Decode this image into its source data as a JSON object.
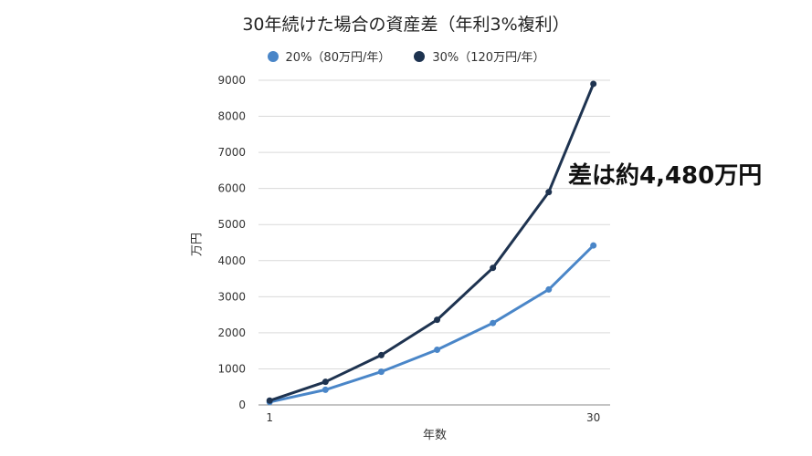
{
  "chart_data": {
    "type": "line",
    "title": "30年続けた場合の資産差（年利3%複利）",
    "xlabel": "年数",
    "ylabel": "万円",
    "ylim": [
      0,
      9000
    ],
    "yticks": [
      0,
      1000,
      2000,
      3000,
      4000,
      5000,
      6000,
      7000,
      8000,
      9000
    ],
    "x": [
      1,
      6,
      11,
      16,
      21,
      26,
      30
    ],
    "x_tick_labels": [
      {
        "x": 1,
        "label": "1"
      },
      {
        "x": 30,
        "label": "30"
      }
    ],
    "grid": true,
    "legend_position": "top",
    "series": [
      {
        "name": "20%（80万円/年）",
        "color": "#4a86c8",
        "values": [
          80,
          420,
          920,
          1530,
          2270,
          3200,
          4420
        ]
      },
      {
        "name": "30%（120万円/年）",
        "color": "#1e3350",
        "values": [
          120,
          640,
          1380,
          2360,
          3800,
          5900,
          8900
        ]
      }
    ],
    "annotation": "差は約4,480万円"
  }
}
